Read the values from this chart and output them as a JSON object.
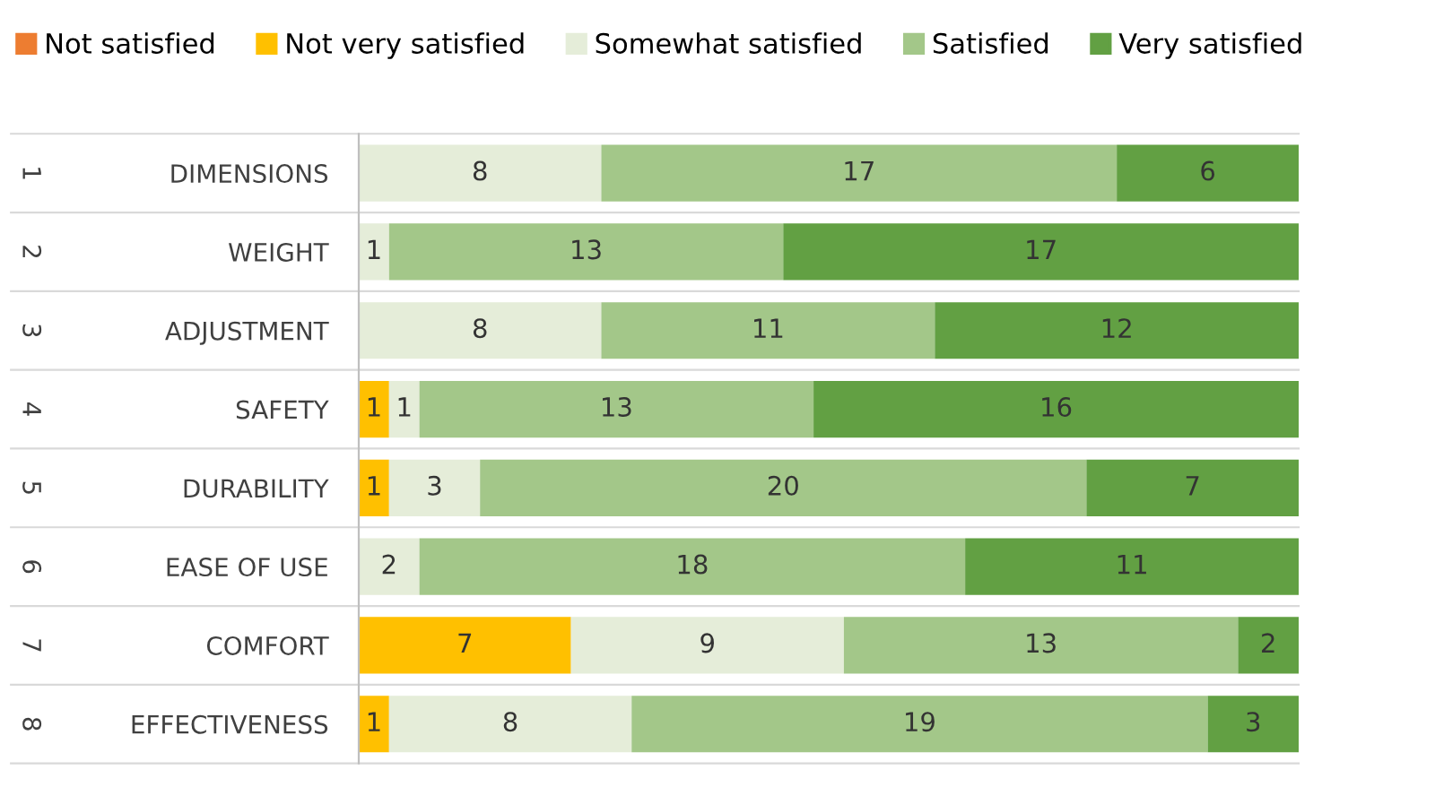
{
  "chart_data": {
    "type": "bar",
    "orientation": "horizontal",
    "stacked": true,
    "data_labels": true,
    "grid": "y",
    "legend": "top",
    "categories": [
      "DIMENSIONS",
      "WEIGHT",
      "ADJUSTMENT",
      "SAFETY",
      "DURABILITY",
      "EASE OF USE",
      "COMFORT",
      "EFFECTIVENESS"
    ],
    "annotations": [
      "1",
      "2",
      "3",
      "4",
      "5",
      "6",
      "7",
      "8"
    ],
    "series": [
      {
        "name": "Not satisfied",
        "color": "#ed7d31",
        "values": [
          null,
          null,
          null,
          null,
          null,
          null,
          null,
          null
        ]
      },
      {
        "name": "Not very satisfied",
        "color": "#ffc000",
        "values": [
          null,
          null,
          null,
          1,
          1,
          null,
          7,
          1
        ]
      },
      {
        "name": "Somewhat satisfied",
        "color": "#e5edd9",
        "values": [
          8,
          1,
          8,
          1,
          3,
          2,
          9,
          8
        ]
      },
      {
        "name": "Satisfied",
        "color": "#a3c789",
        "values": [
          17,
          13,
          11,
          13,
          20,
          18,
          13,
          19
        ]
      },
      {
        "name": "Very satisfied",
        "color": "#62a043",
        "values": [
          6,
          17,
          12,
          16,
          7,
          11,
          2,
          3
        ]
      }
    ]
  }
}
